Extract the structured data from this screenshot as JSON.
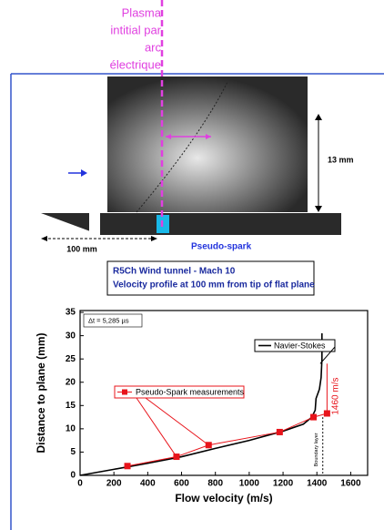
{
  "annotation": {
    "plasma_label": [
      "Plasma",
      "intitial par",
      "arc",
      "électrique"
    ]
  },
  "diagram": {
    "dimension_13mm": "13 mm",
    "dimension_100mm": "100 mm",
    "pseudo_spark": "Pseudo-spark"
  },
  "caption": {
    "lines": [
      "R5Ch Wind tunnel - Mach 10",
      "Velocity profile at 100 mm from tip of flat plane"
    ]
  },
  "chart_data": {
    "type": "line",
    "x_label": "Flow velocity (m/s)",
    "y_label": "Distance to plane (mm)",
    "xlim": [
      0,
      1700
    ],
    "ylim": [
      0,
      35.4
    ],
    "xticks": [
      0,
      200,
      400,
      600,
      800,
      1000,
      1200,
      1400,
      1600
    ],
    "yticks": [
      0,
      5,
      10,
      15,
      20,
      25,
      30,
      35
    ],
    "annotations": {
      "delta_t": "Δt = 5,285 µs",
      "velocity_label": "1460 m/s",
      "boundary_layer": "Boundary layer"
    },
    "series": [
      {
        "name": "Navier-Stokes",
        "color": "#000000",
        "marker": false,
        "x": [
          0,
          200,
          400,
          600,
          800,
          1000,
          1200,
          1320,
          1370,
          1390,
          1395,
          1415,
          1425,
          1430,
          1430
        ],
        "values": [
          0,
          1.3,
          2.6,
          4,
          5.8,
          7.5,
          9.5,
          11,
          12.5,
          14,
          16.5,
          18.5,
          21,
          25,
          30.5
        ]
      },
      {
        "name": "Pseudo-Spark measurements",
        "color": "#e8141b",
        "marker": true,
        "x": [
          280,
          570,
          760,
          1180,
          1380,
          1460
        ],
        "values": [
          2,
          4,
          6.5,
          9.3,
          12.5,
          13.3
        ]
      }
    ]
  }
}
